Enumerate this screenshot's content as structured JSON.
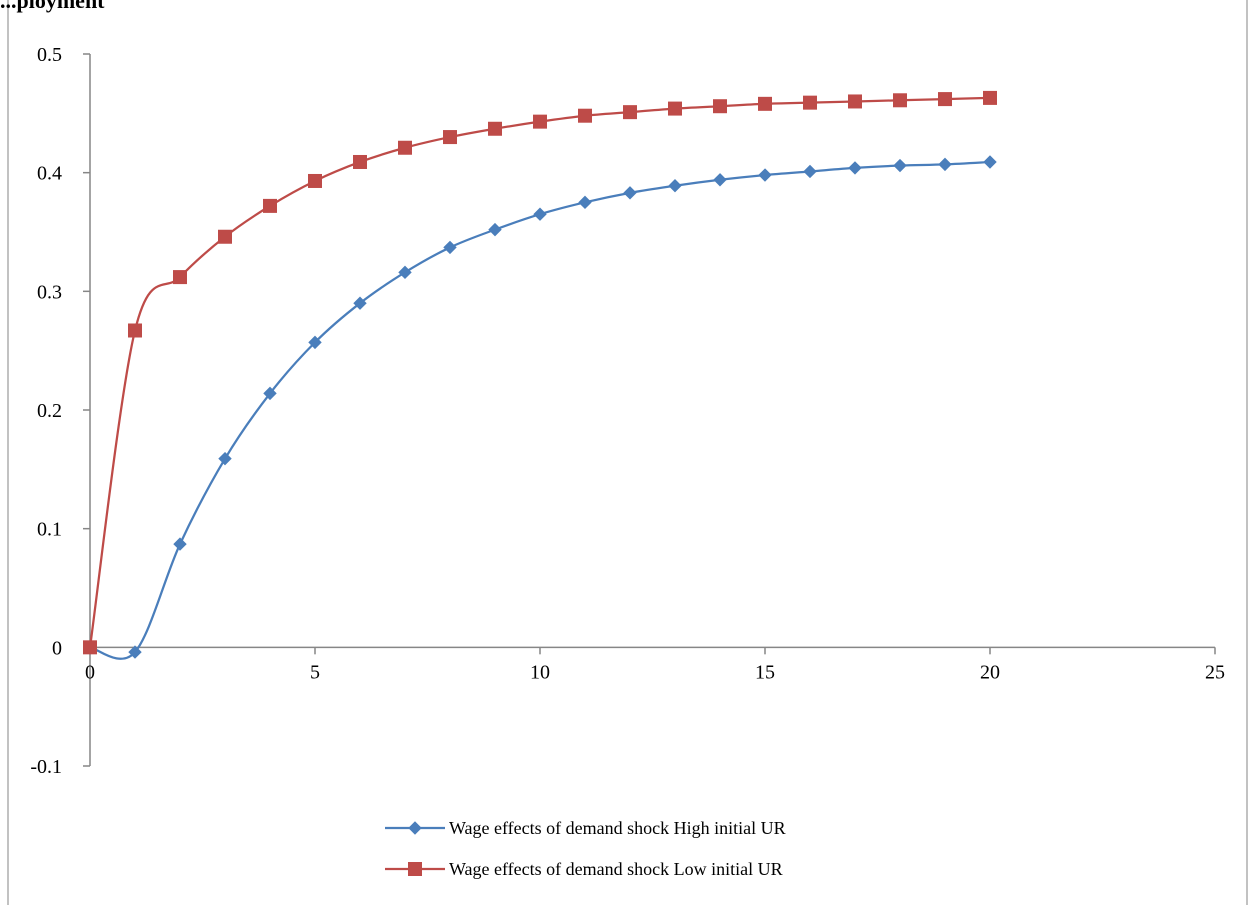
{
  "chart_data": {
    "type": "line",
    "title": "...ployment",
    "xlabel": "",
    "ylabel": "",
    "xlim": [
      0,
      25
    ],
    "ylim": [
      -0.1,
      0.5
    ],
    "x_ticks": [
      0,
      5,
      10,
      15,
      20,
      25
    ],
    "y_ticks": [
      -0.1,
      0,
      0.1,
      0.2,
      0.3,
      0.4,
      0.5
    ],
    "x_tick_labels": [
      "0",
      "5",
      "10",
      "15",
      "20",
      "25"
    ],
    "y_tick_labels": [
      "-0.1",
      "0",
      "0.1",
      "0.2",
      "0.3",
      "0.4",
      "0.5"
    ],
    "grid": false,
    "legend_position": "bottom",
    "x": [
      0,
      1,
      2,
      3,
      4,
      5,
      6,
      7,
      8,
      9,
      10,
      11,
      12,
      13,
      14,
      15,
      16,
      17,
      18,
      19,
      20
    ],
    "series": [
      {
        "name": "Wage effects of demand shock High initial UR",
        "color": "#4a7ebb",
        "marker": "diamond",
        "values": [
          0,
          -0.004,
          0.087,
          0.159,
          0.214,
          0.257,
          0.29,
          0.316,
          0.337,
          0.352,
          0.365,
          0.375,
          0.383,
          0.389,
          0.394,
          0.398,
          0.401,
          0.404,
          0.406,
          0.407,
          0.409
        ]
      },
      {
        "name": "Wage effects of demand shock Low initial UR",
        "color": "#be4b48",
        "marker": "square",
        "values": [
          0,
          0.267,
          0.312,
          0.346,
          0.372,
          0.393,
          0.409,
          0.421,
          0.43,
          0.437,
          0.443,
          0.448,
          0.451,
          0.454,
          0.456,
          0.458,
          0.459,
          0.46,
          0.461,
          0.462,
          0.463
        ]
      }
    ]
  }
}
